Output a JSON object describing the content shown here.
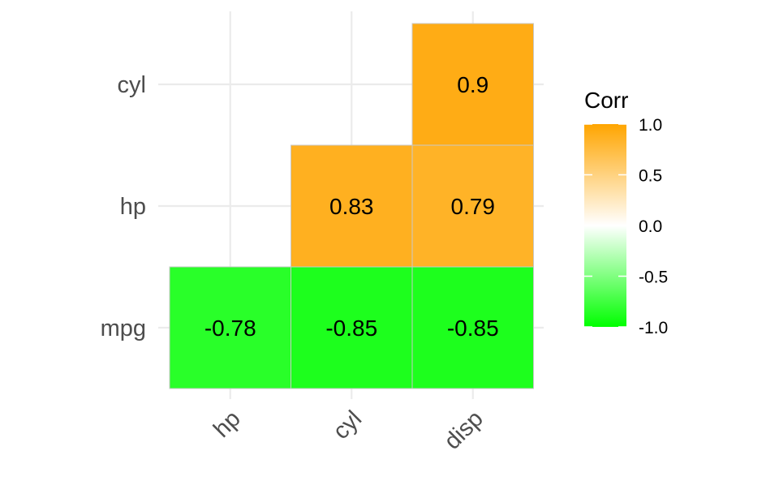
{
  "chart_data": {
    "type": "heatmap",
    "x_categories": [
      "hp",
      "cyl",
      "disp"
    ],
    "y_categories": [
      "mpg",
      "hp",
      "cyl"
    ],
    "cells": [
      {
        "x": "hp",
        "y": "mpg",
        "value": -0.78,
        "label": "-0.78"
      },
      {
        "x": "cyl",
        "y": "mpg",
        "value": -0.85,
        "label": "-0.85"
      },
      {
        "x": "disp",
        "y": "mpg",
        "value": -0.85,
        "label": "-0.85"
      },
      {
        "x": "cyl",
        "y": "hp",
        "value": 0.83,
        "label": "0.83"
      },
      {
        "x": "disp",
        "y": "hp",
        "value": 0.79,
        "label": "0.79"
      },
      {
        "x": "disp",
        "y": "cyl",
        "value": 0.9,
        "label": "0.9"
      }
    ],
    "legend": {
      "title": "Corr",
      "range": [
        -1,
        1
      ],
      "ticks": [
        "1.0",
        "0.5",
        "0.0",
        "-0.5",
        "-1.0"
      ],
      "tick_values": [
        1.0,
        0.5,
        0.0,
        -0.5,
        -1.0
      ],
      "low_color": "#00FF00",
      "mid_color": "#FFFFFF",
      "high_color": "#FFA500"
    },
    "grid": true,
    "legend_position": "right"
  }
}
